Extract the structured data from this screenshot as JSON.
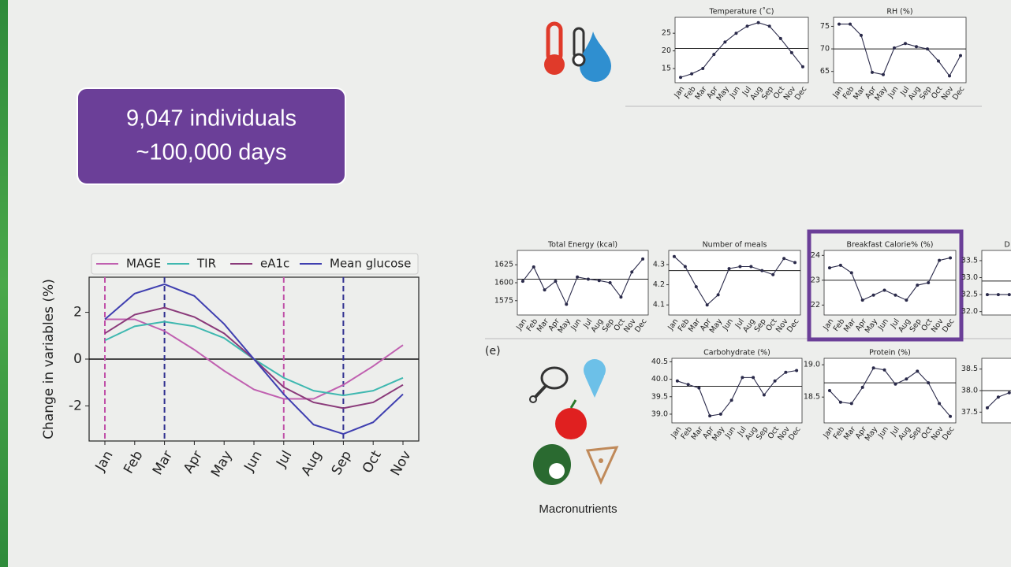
{
  "banner": {
    "lines": [
      "9,047 individuals",
      "~100,000 days"
    ]
  },
  "panel_label": "(e)",
  "icon_caption": "Macronutrients",
  "chart_data": [
    {
      "type": "line",
      "ylabel": "Change in variables (%)",
      "categories": [
        "Jan",
        "Feb",
        "Mar",
        "Apr",
        "May",
        "Jun",
        "Jul",
        "Aug",
        "Sep",
        "Oct",
        "Nov"
      ],
      "series": [
        {
          "name": "MAGE",
          "color": "#c060b0",
          "values": [
            1.7,
            1.7,
            1.2,
            0.4,
            -0.5,
            -1.3,
            -1.7,
            -1.7,
            -1.1,
            -0.3,
            0.6
          ]
        },
        {
          "name": "TIR",
          "color": "#3fb8b0",
          "values": [
            0.8,
            1.4,
            1.6,
            1.4,
            0.9,
            0.0,
            -0.8,
            -1.35,
            -1.55,
            -1.35,
            -0.8
          ]
        },
        {
          "name": "eA1c",
          "color": "#8a3a7a",
          "values": [
            1.1,
            1.9,
            2.2,
            1.8,
            1.1,
            0.0,
            -1.2,
            -1.85,
            -2.1,
            -1.85,
            -1.1
          ]
        },
        {
          "name": "Mean glucose",
          "color": "#3f3fb0",
          "values": [
            1.7,
            2.8,
            3.2,
            2.7,
            1.5,
            0.0,
            -1.5,
            -2.8,
            -3.2,
            -2.7,
            -1.5
          ]
        }
      ],
      "ylim": [
        -3.5,
        3.5
      ],
      "yticks": [
        -2,
        0,
        2
      ],
      "zero_line": true,
      "legend": "top",
      "vlines": [
        {
          "at": "Jan",
          "color": "#c050a8"
        },
        {
          "at": "Mar",
          "color": "#303090"
        },
        {
          "at": "Jul",
          "color": "#c050a8"
        },
        {
          "at": "Sep",
          "color": "#303090"
        }
      ]
    },
    {
      "type": "line",
      "title": "Temperature (˚C)",
      "categories": [
        "Jan",
        "Feb",
        "Mar",
        "Apr",
        "May",
        "Jun",
        "Jul",
        "Aug",
        "Sep",
        "Oct",
        "Nov",
        "Dec"
      ],
      "values": [
        12.5,
        13.5,
        15,
        19,
        22.5,
        25,
        27,
        28,
        27,
        23.5,
        19.5,
        15.5
      ],
      "ylim": [
        11,
        29.5
      ],
      "yticks": [
        15,
        20,
        25
      ],
      "refline": 20.7,
      "color": "#2a2a4a"
    },
    {
      "type": "line",
      "title": "RH (%)",
      "categories": [
        "Jan",
        "Feb",
        "Mar",
        "Apr",
        "May",
        "Jun",
        "Jul",
        "Aug",
        "Sep",
        "Oct",
        "Nov",
        "Dec"
      ],
      "values": [
        75.5,
        75.5,
        73,
        64.8,
        64.3,
        70.2,
        71.2,
        70.5,
        70,
        67.3,
        64,
        68.5
      ],
      "ylim": [
        62.5,
        77
      ],
      "yticks": [
        65,
        70,
        75
      ],
      "refline": 70,
      "color": "#2a2a4a"
    },
    {
      "type": "line",
      "title": "Total Energy (kcal)",
      "categories": [
        "Jan",
        "Feb",
        "Mar",
        "Apr",
        "May",
        "Jun",
        "Jul",
        "Aug",
        "Sep",
        "Oct",
        "Nov",
        "Dec"
      ],
      "values": [
        1602,
        1622,
        1590,
        1602,
        1570,
        1608,
        1605,
        1603,
        1600,
        1580,
        1615,
        1633
      ],
      "ylim": [
        1555,
        1645
      ],
      "yticks": [
        1575,
        1600,
        1625
      ],
      "refline": 1605,
      "color": "#2a2a4a"
    },
    {
      "type": "line",
      "title": "Number of meals",
      "categories": [
        "Jan",
        "Feb",
        "Mar",
        "Apr",
        "May",
        "Jun",
        "Jul",
        "Aug",
        "Sep",
        "Oct",
        "Nov",
        "Dec"
      ],
      "values": [
        4.34,
        4.29,
        4.19,
        4.1,
        4.15,
        4.28,
        4.29,
        4.29,
        4.27,
        4.25,
        4.33,
        4.31
      ],
      "ylim": [
        4.05,
        4.37
      ],
      "yticks": [
        4.1,
        4.2,
        4.3
      ],
      "refline": 4.27,
      "color": "#2a2a4a"
    },
    {
      "type": "line",
      "title": "Breakfast Calorie% (%)",
      "categories": [
        "Jan",
        "Feb",
        "Mar",
        "Apr",
        "May",
        "Jun",
        "Jul",
        "Aug",
        "Sep",
        "Oct",
        "Nov",
        "Dec"
      ],
      "values": [
        23.5,
        23.6,
        23.3,
        22.2,
        22.4,
        22.6,
        22.4,
        22.2,
        22.8,
        22.9,
        23.8,
        23.9
      ],
      "ylim": [
        21.6,
        24.2
      ],
      "yticks": [
        22,
        23,
        24
      ],
      "refline": 23.0,
      "color": "#2a2a4a",
      "highlight": "#6b3f98"
    },
    {
      "type": "line",
      "title": "D",
      "values": [
        32.5,
        32.5,
        32.5
      ],
      "ylim": [
        31.9,
        33.8
      ],
      "yticks": [
        {
          "value": 32,
          "label": "32.0"
        },
        32.5,
        {
          "value": 33,
          "label": "33.0"
        },
        33.5
      ],
      "refline": 32.9,
      "color": "#2a2a4a"
    },
    {
      "type": "line",
      "title": "Carbohydrate (%)",
      "categories": [
        "Jan",
        "Feb",
        "Mar",
        "Apr",
        "May",
        "Jun",
        "Jul",
        "Aug",
        "Sep",
        "Oct",
        "Nov",
        "Dec"
      ],
      "values": [
        39.95,
        39.85,
        39.75,
        38.95,
        39.0,
        39.4,
        40.05,
        40.05,
        39.55,
        39.95,
        40.2,
        40.25
      ],
      "ylim": [
        38.75,
        40.6
      ],
      "yticks": [
        {
          "value": 39,
          "label": "39.0"
        },
        39.5,
        {
          "value": 40,
          "label": "40.0"
        },
        40.5
      ],
      "refline": 39.8,
      "color": "#2a2a4a"
    },
    {
      "type": "line",
      "title": "Protein (%)",
      "categories": [
        "Jan",
        "Feb",
        "Mar",
        "Apr",
        "May",
        "Jun",
        "Jul",
        "Aug",
        "Sep",
        "Oct",
        "Nov",
        "Dec"
      ],
      "values": [
        18.6,
        18.42,
        18.4,
        18.65,
        18.95,
        18.92,
        18.7,
        18.78,
        18.9,
        18.72,
        18.4,
        18.2
      ],
      "ylim": [
        18.1,
        19.1
      ],
      "yticks": [
        18.5,
        {
          "value": 19,
          "label": "19.0"
        }
      ],
      "refline": 18.72,
      "color": "#2a2a4a"
    },
    {
      "type": "line",
      "values": [
        37.6,
        37.85,
        37.95
      ],
      "ylim": [
        37.25,
        38.75
      ],
      "yticks": [
        37.5,
        {
          "value": 38,
          "label": "38.0"
        },
        38.5
      ],
      "refline": 38.0,
      "color": "#2a2a4a"
    }
  ]
}
